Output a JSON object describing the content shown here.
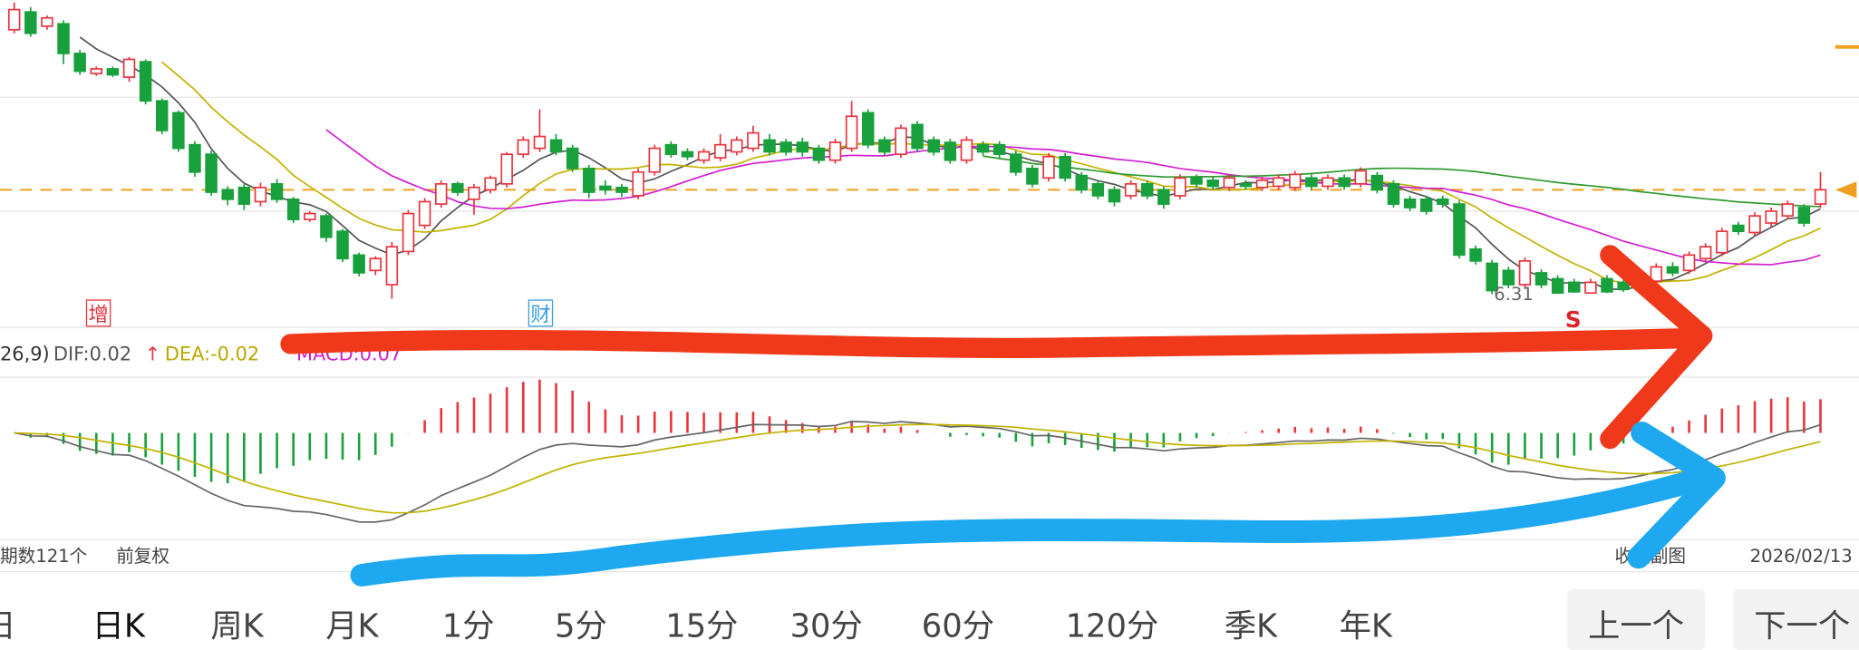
{
  "chart_data": {
    "type": "candlestick",
    "ylim": [
      6.04,
      8.79
    ],
    "price_line": 7.19,
    "colors": {
      "up": "#e8353f",
      "down": "#18a03c",
      "price_line": "#f0a020"
    },
    "candles": [
      [
        8.54,
        8.71,
        8.77,
        8.51
      ],
      [
        8.69,
        8.51,
        8.73,
        8.48
      ],
      [
        8.57,
        8.64,
        8.66,
        8.54
      ],
      [
        8.59,
        8.34,
        8.62,
        8.25
      ],
      [
        8.34,
        8.19,
        8.37,
        8.16
      ],
      [
        8.17,
        8.21,
        8.23,
        8.15
      ],
      [
        8.21,
        8.16,
        8.23,
        8.14
      ],
      [
        8.14,
        8.29,
        8.31,
        8.1
      ],
      [
        8.27,
        7.94,
        8.29,
        7.91
      ],
      [
        7.94,
        7.69,
        7.96,
        7.66
      ],
      [
        7.84,
        7.54,
        7.86,
        7.51
      ],
      [
        7.57,
        7.34,
        7.6,
        7.3
      ],
      [
        7.49,
        7.17,
        7.52,
        7.14
      ],
      [
        7.19,
        7.11,
        7.22,
        7.06
      ],
      [
        7.21,
        7.07,
        7.24,
        7.02
      ],
      [
        7.09,
        7.21,
        7.25,
        7.05
      ],
      [
        7.24,
        7.11,
        7.28,
        7.08
      ],
      [
        7.11,
        6.94,
        7.13,
        6.91
      ],
      [
        6.94,
        6.99,
        7.01,
        6.92
      ],
      [
        6.97,
        6.79,
        6.99,
        6.75
      ],
      [
        6.84,
        6.61,
        6.86,
        6.58
      ],
      [
        6.64,
        6.49,
        6.66,
        6.46
      ],
      [
        6.51,
        6.61,
        6.63,
        6.47
      ],
      [
        6.39,
        6.71,
        6.75,
        6.27
      ],
      [
        6.67,
        6.99,
        7.02,
        6.64
      ],
      [
        6.89,
        7.09,
        7.12,
        6.86
      ],
      [
        7.07,
        7.24,
        7.27,
        7.04
      ],
      [
        7.24,
        7.17,
        7.26,
        7.14
      ],
      [
        7.11,
        7.21,
        7.24,
        6.98
      ],
      [
        7.19,
        7.29,
        7.31,
        7.16
      ],
      [
        7.24,
        7.49,
        7.51,
        7.21
      ],
      [
        7.49,
        7.61,
        7.64,
        7.46
      ],
      [
        7.54,
        7.64,
        7.87,
        7.51
      ],
      [
        7.61,
        7.51,
        7.66,
        7.48
      ],
      [
        7.54,
        7.37,
        7.57,
        7.34
      ],
      [
        7.37,
        7.17,
        7.4,
        7.12
      ],
      [
        7.22,
        7.19,
        7.27,
        7.15
      ],
      [
        7.21,
        7.17,
        7.24,
        7.13
      ],
      [
        7.14,
        7.34,
        7.37,
        7.11
      ],
      [
        7.34,
        7.54,
        7.57,
        7.31
      ],
      [
        7.57,
        7.49,
        7.6,
        7.46
      ],
      [
        7.51,
        7.47,
        7.54,
        7.44
      ],
      [
        7.44,
        7.51,
        7.54,
        7.41
      ],
      [
        7.46,
        7.57,
        7.66,
        7.43
      ],
      [
        7.51,
        7.61,
        7.64,
        7.48
      ],
      [
        7.54,
        7.67,
        7.73,
        7.51
      ],
      [
        7.61,
        7.51,
        7.66,
        7.48
      ],
      [
        7.59,
        7.51,
        7.62,
        7.48
      ],
      [
        7.59,
        7.51,
        7.63,
        7.47
      ],
      [
        7.54,
        7.44,
        7.57,
        7.41
      ],
      [
        7.44,
        7.59,
        7.62,
        7.41
      ],
      [
        7.54,
        7.81,
        7.94,
        7.51
      ],
      [
        7.84,
        7.57,
        7.87,
        7.54
      ],
      [
        7.61,
        7.51,
        7.64,
        7.48
      ],
      [
        7.49,
        7.71,
        7.74,
        7.46
      ],
      [
        7.74,
        7.54,
        7.77,
        7.51
      ],
      [
        7.61,
        7.51,
        7.64,
        7.48
      ],
      [
        7.59,
        7.44,
        7.62,
        7.41
      ],
      [
        7.44,
        7.61,
        7.64,
        7.41
      ],
      [
        7.57,
        7.51,
        7.6,
        7.48
      ],
      [
        7.57,
        7.49,
        7.6,
        7.46
      ],
      [
        7.49,
        7.34,
        7.52,
        7.31
      ],
      [
        7.37,
        7.24,
        7.4,
        7.21
      ],
      [
        7.29,
        7.47,
        7.5,
        7.26
      ],
      [
        7.47,
        7.29,
        7.5,
        7.26
      ],
      [
        7.31,
        7.19,
        7.34,
        7.16
      ],
      [
        7.24,
        7.14,
        7.27,
        7.11
      ],
      [
        7.19,
        7.09,
        7.22,
        7.05
      ],
      [
        7.14,
        7.24,
        7.27,
        7.11
      ],
      [
        7.24,
        7.14,
        7.27,
        7.11
      ],
      [
        7.19,
        7.07,
        7.22,
        7.03
      ],
      [
        7.14,
        7.29,
        7.32,
        7.11
      ],
      [
        7.29,
        7.24,
        7.32,
        7.21
      ],
      [
        7.27,
        7.22,
        7.3,
        7.19
      ],
      [
        7.21,
        7.29,
        7.32,
        7.18
      ],
      [
        7.24,
        7.22,
        7.27,
        7.19
      ],
      [
        7.21,
        7.27,
        7.3,
        7.18
      ],
      [
        7.22,
        7.29,
        7.32,
        7.19
      ],
      [
        7.21,
        7.32,
        7.35,
        7.18
      ],
      [
        7.29,
        7.22,
        7.32,
        7.19
      ],
      [
        7.22,
        7.29,
        7.32,
        7.19
      ],
      [
        7.29,
        7.22,
        7.32,
        7.19
      ],
      [
        7.24,
        7.35,
        7.38,
        7.21
      ],
      [
        7.31,
        7.19,
        7.34,
        7.16
      ],
      [
        7.24,
        7.07,
        7.27,
        7.04
      ],
      [
        7.11,
        7.04,
        7.14,
        7.01
      ],
      [
        7.11,
        7.01,
        7.14,
        6.98
      ],
      [
        7.11,
        7.07,
        7.14,
        7.04
      ],
      [
        7.07,
        6.64,
        7.1,
        6.61
      ],
      [
        6.69,
        6.59,
        6.72,
        6.56
      ],
      [
        6.57,
        6.34,
        6.6,
        6.31
      ],
      [
        6.51,
        6.39,
        6.54,
        6.36
      ],
      [
        6.39,
        6.59,
        6.62,
        6.36
      ],
      [
        6.49,
        6.39,
        6.52,
        6.36
      ],
      [
        6.44,
        6.32,
        6.47,
        6.32
      ],
      [
        6.41,
        6.33,
        6.44,
        6.32
      ],
      [
        6.32,
        6.41,
        6.44,
        6.32
      ],
      [
        6.44,
        6.33,
        6.47,
        6.32
      ],
      [
        6.41,
        6.35,
        6.44,
        6.33
      ],
      [
        6.37,
        6.46,
        6.49,
        6.34
      ],
      [
        6.42,
        6.54,
        6.57,
        6.39
      ],
      [
        6.54,
        6.49,
        6.58,
        6.46
      ],
      [
        6.51,
        6.64,
        6.67,
        6.48
      ],
      [
        6.61,
        6.71,
        6.74,
        6.58
      ],
      [
        6.66,
        6.84,
        6.87,
        6.63
      ],
      [
        6.89,
        6.84,
        6.92,
        6.81
      ],
      [
        6.83,
        6.97,
        7.0,
        6.8
      ],
      [
        6.91,
        7.01,
        7.04,
        6.88
      ],
      [
        6.97,
        7.07,
        7.1,
        6.94
      ],
      [
        7.04,
        6.91,
        7.07,
        6.88
      ],
      [
        7.07,
        7.19,
        7.34,
        7.04
      ]
    ],
    "low_label": 6.31,
    "markers": [
      "增",
      "财",
      "S"
    ],
    "macd_legend": {
      "params": "26,9)",
      "dif": "DIF:0.02",
      "dea": "DEA:-0.02",
      "macd": "MACD:0.07"
    }
  },
  "footer": {
    "periods": "期数121个",
    "adjust": "前复权",
    "collapse": "收起副图",
    "date": "2026/02/13"
  },
  "tabs": [
    "日",
    "日K",
    "周K",
    "月K",
    "1分",
    "5分",
    "15分",
    "30分",
    "60分",
    "120分",
    "季K",
    "年K"
  ],
  "buttons": [
    "上一个",
    "下一个"
  ]
}
